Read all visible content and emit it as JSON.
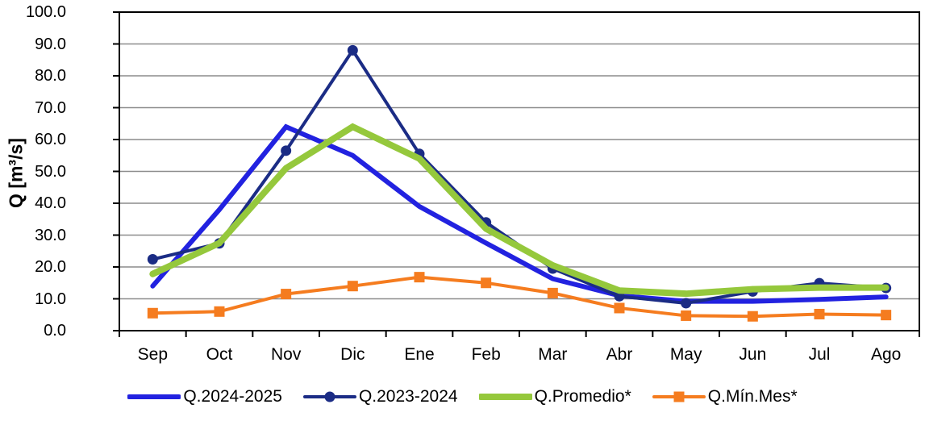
{
  "chart_data": {
    "type": "line",
    "title": "",
    "ylabel": "Q [m³/s]",
    "xlabel": "",
    "ylim": [
      0,
      100
    ],
    "ytick_step": 10,
    "ytick_labels": [
      "0.0",
      "10.0",
      "20.0",
      "30.0",
      "40.0",
      "50.0",
      "60.0",
      "70.0",
      "80.0",
      "90.0",
      "100.0"
    ],
    "grid": "horizontal",
    "gridline_color": "#8c8c8c",
    "axis_color": "#000000",
    "legend_position": "bottom",
    "categories": [
      "Sep",
      "Oct",
      "Nov",
      "Dic",
      "Ene",
      "Feb",
      "Mar",
      "Abr",
      "May",
      "Jun",
      "Jul",
      "Ago"
    ],
    "series": [
      {
        "name": "Q.2024-2025",
        "color": "#2222e0",
        "marker": "none",
        "line_width": 6,
        "values": [
          14,
          38,
          64,
          55,
          39,
          27.5,
          16.3,
          11,
          9.2,
          9.2,
          9.8,
          10.6
        ]
      },
      {
        "name": "Q.2023-2024",
        "color": "#1b2c85",
        "marker": "circle",
        "line_width": 4,
        "values": [
          22.4,
          27.4,
          56.5,
          88,
          55.5,
          34,
          19.5,
          10.8,
          8.6,
          12.3,
          14.9,
          13.4
        ]
      },
      {
        "name": "Q.Promedio*",
        "color": "#95c83c",
        "marker": "none",
        "line_width": 8,
        "values": [
          17.8,
          27.5,
          51,
          64,
          54,
          32,
          20.5,
          12.6,
          11.6,
          13,
          13.5,
          13.5
        ]
      },
      {
        "name": "Q.Mín.Mes*",
        "color": "#f57c1f",
        "marker": "square",
        "line_width": 4,
        "values": [
          5.5,
          6,
          11.5,
          14,
          16.8,
          15,
          11.8,
          7.1,
          4.7,
          4.5,
          5.2,
          4.9
        ]
      }
    ]
  }
}
